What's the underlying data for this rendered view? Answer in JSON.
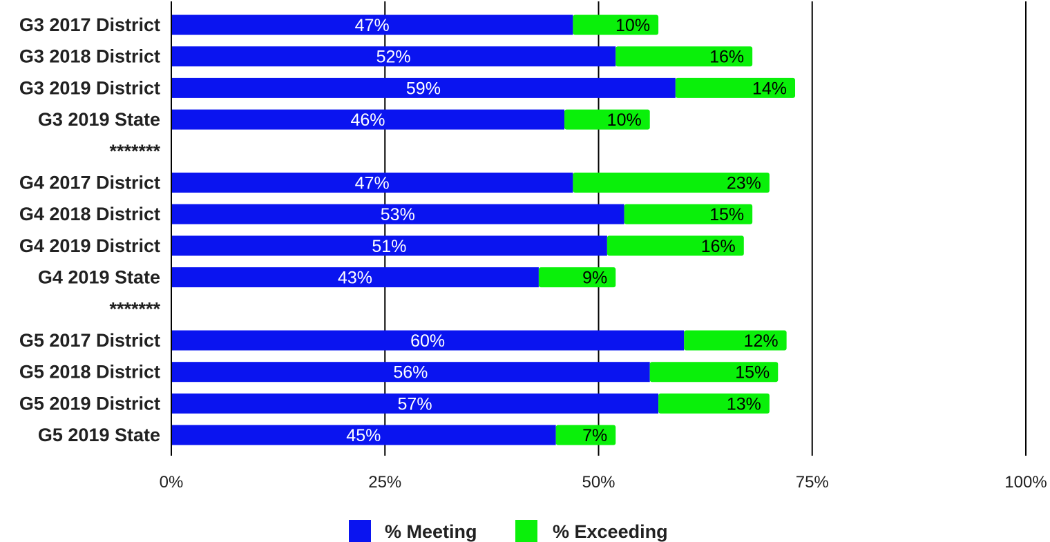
{
  "chart_data": {
    "type": "bar",
    "orientation": "horizontal",
    "stacked": true,
    "categories": [
      "G3 2017 District",
      "G3 2018 District",
      "G3 2019 District",
      "G3 2019 State",
      "*******",
      "G4 2017 District",
      "G4 2018 District",
      "G4 2019 District",
      "G4 2019 State",
      "*******",
      "G5 2017 District",
      "G5 2018 District",
      "G5 2019 District",
      "G5 2019 State"
    ],
    "series": [
      {
        "name": "% Meeting",
        "color": "#0a14f0",
        "values": [
          47,
          52,
          59,
          46,
          null,
          47,
          53,
          51,
          43,
          null,
          60,
          56,
          57,
          45
        ],
        "labels": [
          "47%",
          "52%",
          "59%",
          "46%",
          "",
          "47%",
          "53%",
          "51%",
          "43%",
          "",
          "60%",
          "56%",
          "57%",
          "45%"
        ]
      },
      {
        "name": "% Exceeding",
        "color": "#0af00a",
        "values": [
          10,
          16,
          14,
          10,
          null,
          23,
          15,
          16,
          9,
          null,
          12,
          15,
          13,
          7
        ],
        "labels": [
          "10%",
          "16%",
          "14%",
          "10%",
          "",
          "23%",
          "15%",
          "16%",
          "9%",
          "",
          "12%",
          "15%",
          "13%",
          "7%"
        ]
      }
    ],
    "xlim": [
      0,
      100
    ],
    "xticks": [
      0,
      25,
      50,
      75,
      100
    ],
    "xtick_labels": [
      "0%",
      "25%",
      "50%",
      "75%",
      "100%"
    ],
    "grid": true,
    "legend_position": "bottom"
  }
}
